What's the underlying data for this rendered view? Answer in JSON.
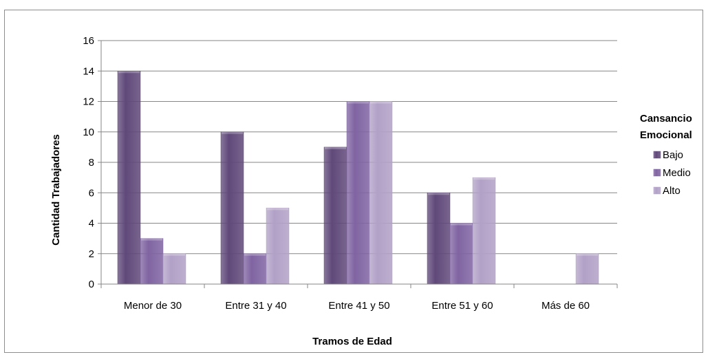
{
  "chart_data": {
    "type": "bar",
    "title": "",
    "xlabel": "Tramos de Edad",
    "ylabel": "Cantidad Trabajadores",
    "categories": [
      "Menor de 30",
      "Entre 31 y 40",
      "Entre 41 y 50",
      "Entre 51 y 60",
      "Más de 60"
    ],
    "series": [
      {
        "name": "Bajo",
        "values": [
          14,
          10,
          9,
          6,
          0
        ],
        "color": "#60497a"
      },
      {
        "name": "Medio",
        "values": [
          3,
          2,
          12,
          4,
          0
        ],
        "color": "#8064a2"
      },
      {
        "name": "Alto",
        "values": [
          2,
          5,
          12,
          7,
          2
        ],
        "color": "#b2a1c7"
      }
    ],
    "ylim": [
      0,
      16
    ],
    "yticks": [
      0,
      2,
      4,
      6,
      8,
      10,
      12,
      14,
      16
    ],
    "grid": true,
    "legend": {
      "title_lines": [
        "Cansancio",
        "Emocional"
      ],
      "position": "right"
    }
  }
}
